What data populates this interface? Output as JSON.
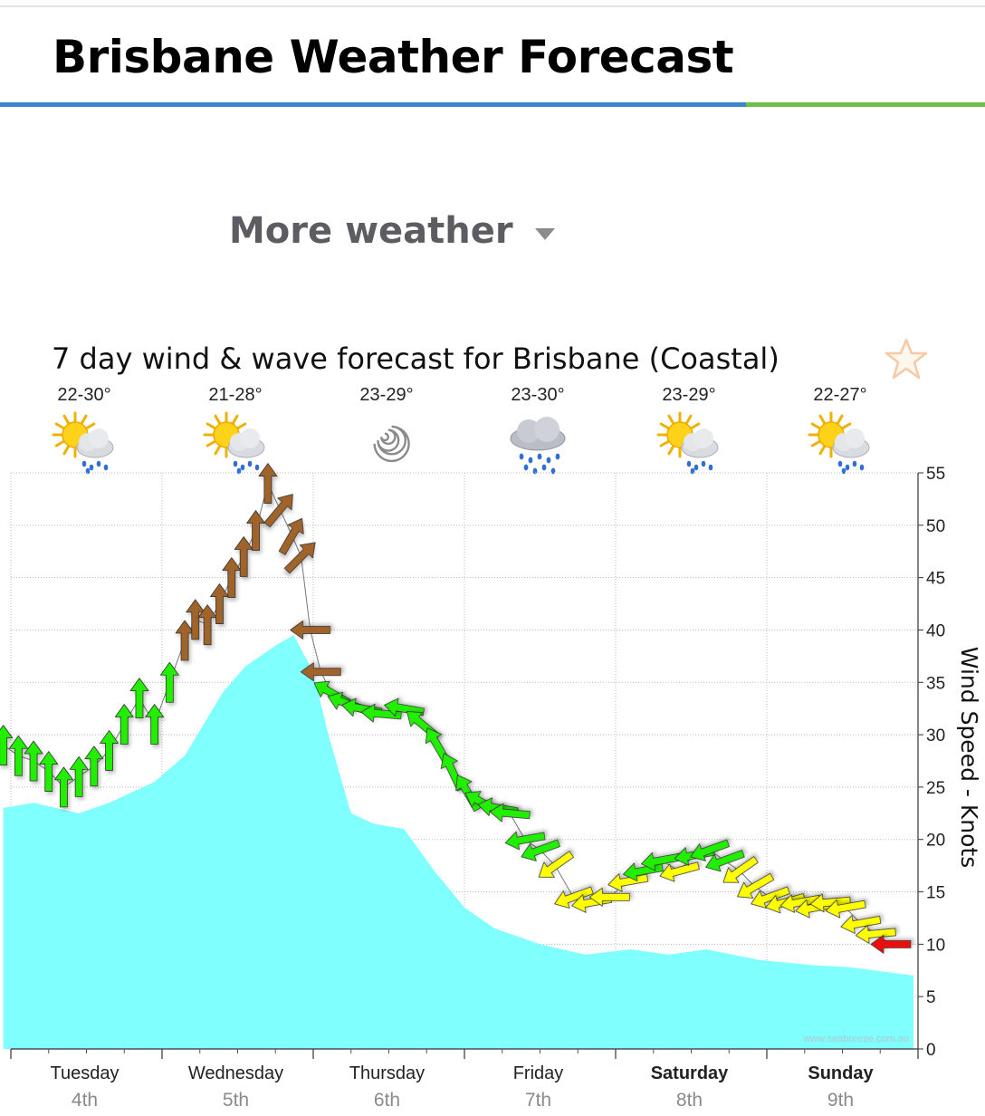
{
  "header": {
    "title": "Brisbane Weather Forecast"
  },
  "more_weather": {
    "label": "More weather"
  },
  "forecast_title": "7 day wind & wave forecast for Brisbane (Coastal)",
  "days": [
    {
      "temp": "22-30°",
      "icon": "sun-cloud-rain"
    },
    {
      "temp": "21-28°",
      "icon": "sun-cloud-rain"
    },
    {
      "temp": "23-29°",
      "icon": "cyclone"
    },
    {
      "temp": "23-30°",
      "icon": "cloud-rain"
    },
    {
      "temp": "23-29°",
      "icon": "sun-cloud-rain"
    },
    {
      "temp": "22-27°",
      "icon": "sun-cloud-rain"
    }
  ],
  "colors": {
    "wave_fill": "#80ffff",
    "strong": "#a0642a",
    "fresh": "#22ee00",
    "moderate": "#ffff00",
    "light": "#ee1111"
  },
  "chart_data": {
    "type": "area",
    "ylabel": "Wind Speed - Knots",
    "ylim": [
      0,
      55
    ],
    "yticks": [
      "0",
      "5",
      "10",
      "15",
      "20",
      "25",
      "30",
      "35",
      "40",
      "45",
      "50",
      "55"
    ],
    "grid": true,
    "x_days": [
      {
        "name": "Tuesday",
        "date": "4th",
        "bold": false
      },
      {
        "name": "Wednesday",
        "date": "5th",
        "bold": false
      },
      {
        "name": "Thursday",
        "date": "6th",
        "bold": false
      },
      {
        "name": "Friday",
        "date": "7th",
        "bold": false
      },
      {
        "name": "Saturday",
        "date": "8th",
        "bold": true
      },
      {
        "name": "Sunday",
        "date": "9th",
        "bold": true
      }
    ],
    "watermark": "www.seabreeze.com.au",
    "wave_area": {
      "x": [
        -0.05,
        0.15,
        0.45,
        0.65,
        0.95,
        1.15,
        1.4,
        1.55,
        1.75,
        1.87,
        2.0,
        2.1,
        2.25,
        2.4,
        2.6,
        2.8,
        3.0,
        3.2,
        3.5,
        3.8,
        4.1,
        4.35,
        4.6,
        4.95,
        5.3,
        5.55,
        5.97
      ],
      "y": [
        23,
        23.5,
        22.5,
        23.5,
        25.5,
        28,
        34,
        36.5,
        38.5,
        39.5,
        36,
        30,
        22.5,
        21.5,
        21,
        17,
        13.5,
        11.5,
        10,
        9,
        9.5,
        9,
        9.5,
        8.5,
        8,
        7.8,
        7
      ]
    },
    "wind_arrows": {
      "x": [
        -0.05,
        0.05,
        0.15,
        0.25,
        0.35,
        0.45,
        0.55,
        0.65,
        0.75,
        0.85,
        0.95,
        1.05,
        1.15,
        1.22,
        1.3,
        1.38,
        1.46,
        1.54,
        1.62,
        1.7,
        1.78,
        1.86,
        1.92,
        1.98,
        2.05,
        2.12,
        2.22,
        2.32,
        2.45,
        2.6,
        2.72,
        2.82,
        2.92,
        3.02,
        3.12,
        3.22,
        3.3,
        3.4,
        3.5,
        3.6,
        3.72,
        3.84,
        3.96,
        4.08,
        4.18,
        4.3,
        4.42,
        4.52,
        4.62,
        4.72,
        4.82,
        4.92,
        5.02,
        5.12,
        5.22,
        5.32,
        5.42,
        5.52,
        5.62,
        5.72,
        5.82
      ],
      "y": [
        29,
        28,
        27.5,
        26.5,
        25,
        26,
        27,
        28.5,
        31,
        33.5,
        31,
        35,
        39,
        41,
        40.5,
        42.5,
        45,
        47,
        49.5,
        54,
        51.5,
        49,
        47,
        40,
        36,
        34,
        33,
        32.5,
        32,
        32.5,
        31,
        29,
        26.5,
        24.5,
        23.5,
        23,
        22.5,
        20,
        19,
        17.5,
        14.5,
        14,
        14.5,
        16,
        17,
        18,
        17,
        18.5,
        19,
        18,
        17,
        15.5,
        14.5,
        14,
        14,
        13.5,
        14,
        13.5,
        12,
        11,
        10
      ],
      "dir_deg": [
        90,
        90,
        90,
        90,
        90,
        90,
        90,
        90,
        90,
        90,
        90,
        90,
        90,
        90,
        90,
        90,
        90,
        90,
        90,
        90,
        50,
        60,
        45,
        180,
        180,
        150,
        160,
        170,
        175,
        170,
        140,
        120,
        115,
        120,
        150,
        170,
        175,
        190,
        200,
        215,
        200,
        190,
        180,
        190,
        190,
        190,
        195,
        190,
        200,
        200,
        215,
        210,
        200,
        195,
        190,
        190,
        185,
        190,
        190,
        185,
        180
      ],
      "color_key": [
        "fresh",
        "fresh",
        "fresh",
        "fresh",
        "fresh",
        "fresh",
        "fresh",
        "fresh",
        "fresh",
        "fresh",
        "fresh",
        "fresh",
        "strong",
        "strong",
        "strong",
        "strong",
        "strong",
        "strong",
        "strong",
        "strong",
        "strong",
        "strong",
        "strong",
        "strong",
        "strong",
        "fresh",
        "fresh",
        "fresh",
        "fresh",
        "fresh",
        "fresh",
        "fresh",
        "fresh",
        "fresh",
        "fresh",
        "fresh",
        "fresh",
        "fresh",
        "fresh",
        "moderate",
        "moderate",
        "moderate",
        "moderate",
        "moderate",
        "fresh",
        "fresh",
        "moderate",
        "fresh",
        "fresh",
        "fresh",
        "moderate",
        "moderate",
        "moderate",
        "moderate",
        "moderate",
        "moderate",
        "moderate",
        "moderate",
        "moderate",
        "moderate",
        "light"
      ]
    }
  }
}
